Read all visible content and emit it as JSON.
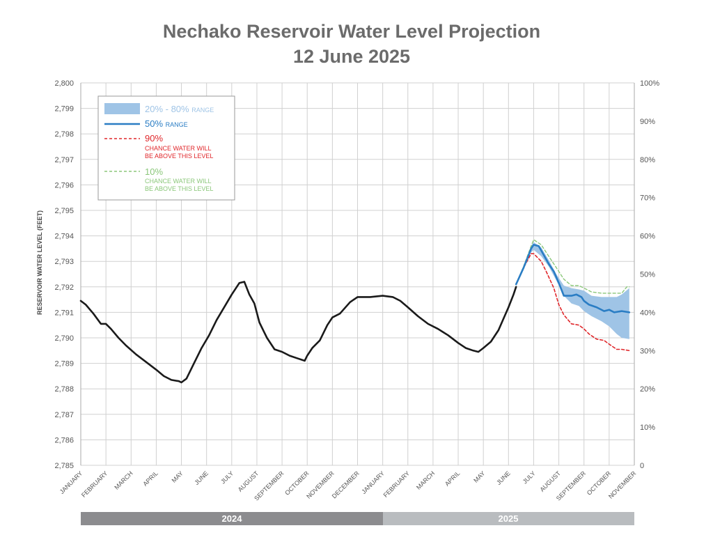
{
  "title": "Nechako Reservoir Water Level Projection",
  "subtitle": "12 June 2025",
  "colors": {
    "historical": "#1a1a1a",
    "median": "#2a7dc4",
    "band": "#9fc4e6",
    "p90": "#e0262a",
    "p10": "#8bc77a",
    "grid": "#d0d0d0",
    "year2024": "#8c8c8f",
    "year2025": "#b9bcbf"
  },
  "legend": {
    "band_label": "20% - 80%",
    "band_suffix": "RANGE",
    "median_label": "50%",
    "median_suffix": "RANGE",
    "p90_label": "90%",
    "p90_line1": "CHANCE WATER WILL",
    "p90_line2": "BE ABOVE THIS LEVEL",
    "p10_label": "10%",
    "p10_line1": "CHANCE WATER WILL",
    "p10_line2": "BE ABOVE THIS LEVEL"
  },
  "years": [
    "2024",
    "2025"
  ],
  "chart_data": {
    "type": "line",
    "ylabel": "RESERVOIR WATER LEVEL (FEET)",
    "ylim": [
      2785,
      2800
    ],
    "y_ticks": [
      "2,800",
      "2,799",
      "2,798",
      "2,797",
      "2,796",
      "2,795",
      "2,794",
      "2,793",
      "2,792",
      "2,791",
      "2,790",
      "2,789",
      "2,788",
      "2,787",
      "2,786",
      "2,785"
    ],
    "y2_ticks": [
      "100%",
      "90%",
      "80%",
      "70%",
      "60%",
      "50%",
      "40%",
      "30%",
      "20%",
      "10%",
      "0"
    ],
    "x_ticks": [
      "JANUARY",
      "FEBRUARY",
      "MARCH",
      "APRIL",
      "MAY",
      "JUNE",
      "JULY",
      "AUGUST",
      "SEPTEMBER",
      "OCTOBER",
      "NOVEMBER",
      "DECEMBER",
      "JANUARY",
      "FEBRUARY",
      "MARCH",
      "APRIL",
      "MAY",
      "JUNE",
      "JULY",
      "AUGUST",
      "SEPTEMBER",
      "OCTOBER",
      "NOVEMBER"
    ],
    "x_note": "x values are months elapsed since 1 January 2024",
    "grid": true,
    "legend_position": "top-left",
    "series": [
      {
        "name": "historical",
        "x": [
          0,
          0.2,
          0.5,
          0.8,
          1.0,
          1.2,
          1.5,
          1.8,
          2.2,
          2.6,
          3.0,
          3.3,
          3.6,
          3.9,
          4.0,
          4.2,
          4.5,
          4.8,
          5.1,
          5.4,
          5.7,
          6.0,
          6.3,
          6.5,
          6.7,
          6.9,
          7.1,
          7.4,
          7.7,
          8.0,
          8.3,
          8.6,
          8.9,
          9.0,
          9.2,
          9.5,
          9.8,
          10.0,
          10.3,
          10.7,
          11.0,
          11.5,
          12.0,
          12.4,
          12.7,
          13.0,
          13.4,
          13.8,
          14.2,
          14.6,
          15.0,
          15.3,
          15.6,
          15.8,
          16.0,
          16.3,
          16.6,
          16.8,
          17.0,
          17.2,
          17.3
        ],
        "y": [
          2791.45,
          2791.3,
          2790.95,
          2790.55,
          2790.55,
          2790.35,
          2790.0,
          2789.7,
          2789.35,
          2789.05,
          2788.75,
          2788.5,
          2788.35,
          2788.3,
          2788.25,
          2788.4,
          2789.0,
          2789.6,
          2790.1,
          2790.7,
          2791.2,
          2791.7,
          2792.15,
          2792.2,
          2791.7,
          2791.35,
          2790.6,
          2790.0,
          2789.55,
          2789.45,
          2789.3,
          2789.2,
          2789.1,
          2789.3,
          2789.6,
          2789.9,
          2790.5,
          2790.8,
          2790.95,
          2791.4,
          2791.6,
          2791.6,
          2791.65,
          2791.6,
          2791.45,
          2791.2,
          2790.85,
          2790.55,
          2790.35,
          2790.1,
          2789.8,
          2789.6,
          2789.5,
          2789.45,
          2789.6,
          2789.85,
          2790.3,
          2790.75,
          2791.2,
          2791.7,
          2792.0
        ]
      },
      {
        "name": "50%",
        "x": [
          17.3,
          17.6,
          17.9,
          18.0,
          18.2,
          18.4,
          18.6,
          18.8,
          19.0,
          19.2,
          19.5,
          19.7,
          19.9,
          20.0,
          20.2,
          20.5,
          20.8,
          21.0,
          21.2,
          21.5,
          21.8
        ],
        "y": [
          2792.1,
          2792.75,
          2793.5,
          2793.65,
          2793.6,
          2793.25,
          2792.9,
          2792.6,
          2792.15,
          2791.65,
          2791.65,
          2791.7,
          2791.6,
          2791.45,
          2791.3,
          2791.2,
          2791.05,
          2791.1,
          2791.0,
          2791.05,
          2791.0
        ]
      },
      {
        "name": "90%",
        "x": [
          17.3,
          17.6,
          17.9,
          18.0,
          18.3,
          18.5,
          18.8,
          19.0,
          19.2,
          19.5,
          19.8,
          20.0,
          20.2,
          20.5,
          20.8,
          21.0,
          21.3,
          21.5,
          21.8
        ],
        "y": [
          2792.1,
          2792.75,
          2793.3,
          2793.3,
          2793.0,
          2792.6,
          2791.95,
          2791.3,
          2790.9,
          2790.55,
          2790.5,
          2790.35,
          2790.15,
          2789.95,
          2789.9,
          2789.75,
          2789.55,
          2789.55,
          2789.5
        ]
      },
      {
        "name": "10%",
        "x": [
          17.3,
          17.6,
          17.9,
          18.0,
          18.3,
          18.6,
          18.9,
          19.2,
          19.5,
          19.8,
          20.0,
          20.3,
          20.7,
          21.0,
          21.3,
          21.5,
          21.7,
          21.8
        ],
        "y": [
          2792.1,
          2792.8,
          2793.6,
          2793.85,
          2793.65,
          2793.2,
          2792.75,
          2792.3,
          2792.05,
          2792.05,
          2791.95,
          2791.8,
          2791.75,
          2791.75,
          2791.75,
          2791.75,
          2792.0,
          2792.0
        ]
      },
      {
        "name": "20% - 80%",
        "x": [
          17.3,
          17.6,
          17.9,
          18.0,
          18.3,
          18.6,
          18.9,
          19.2,
          19.5,
          19.8,
          20.0,
          20.3,
          20.7,
          21.0,
          21.3,
          21.5,
          21.8
        ],
        "low": [
          2792.1,
          2792.7,
          2793.35,
          2793.45,
          2793.2,
          2792.8,
          2792.25,
          2791.65,
          2791.35,
          2791.25,
          2791.05,
          2790.85,
          2790.65,
          2790.45,
          2790.15,
          2790.0,
          2789.95
        ],
        "high": [
          2792.1,
          2792.8,
          2793.6,
          2793.75,
          2793.55,
          2793.05,
          2792.5,
          2792.05,
          2791.95,
          2791.9,
          2791.85,
          2791.65,
          2791.6,
          2791.6,
          2791.6,
          2791.7,
          2791.95
        ]
      }
    ]
  }
}
